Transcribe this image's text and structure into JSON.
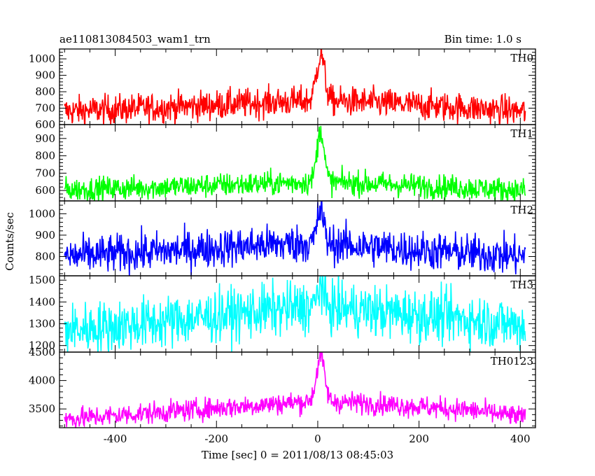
{
  "header": {
    "left_title": "ae110813084503_wam1_trn",
    "right_title": "Bin time: 1.0 s"
  },
  "chart_data": {
    "type": "line",
    "title": "ae110813084503_wam1_trn",
    "subtitle": "Bin time: 1.0 s",
    "xlabel": "Time [sec] 0 = 2011/08/13 08:45:03",
    "ylabel": "Counts/sec",
    "xlim": [
      -510,
      430
    ],
    "x_ticks": [
      -400,
      -200,
      0,
      200,
      400
    ],
    "x_range_data": [
      -500,
      410
    ],
    "panels": [
      {
        "name": "TH0",
        "color": "#ff0000",
        "ylim": [
          600,
          1060
        ],
        "y_ticks": [
          600,
          700,
          800,
          900,
          1000
        ],
        "baseline": {
          "x": [
            -500,
            -300,
            -100,
            0,
            100,
            300,
            410
          ],
          "y": [
            680,
            705,
            735,
            745,
            735,
            700,
            680
          ]
        },
        "noise": 45,
        "peak": {
          "x": 5,
          "y": 1060,
          "width": 8
        }
      },
      {
        "name": "TH1",
        "color": "#00ff00",
        "ylim": [
          540,
          980
        ],
        "y_ticks": [
          600,
          700,
          800,
          900
        ],
        "baseline": {
          "x": [
            -500,
            -300,
            -100,
            0,
            100,
            300,
            410
          ],
          "y": [
            605,
            620,
            640,
            650,
            640,
            615,
            600
          ]
        },
        "noise": 35,
        "peak": {
          "x": 5,
          "y": 980,
          "width": 7
        }
      },
      {
        "name": "TH2",
        "color": "#0000ff",
        "ylim": [
          710,
          1060
        ],
        "y_ticks": [
          800,
          900,
          1000
        ],
        "baseline": {
          "x": [
            -500,
            -300,
            -100,
            0,
            100,
            300,
            410
          ],
          "y": [
            800,
            825,
            855,
            865,
            845,
            815,
            800
          ]
        },
        "noise": 45,
        "peak": {
          "x": 5,
          "y": 1040,
          "width": 6
        }
      },
      {
        "name": "TH3",
        "color": "#00ffff",
        "ylim": [
          1170,
          1520
        ],
        "y_ticks": [
          1200,
          1300,
          1400,
          1500
        ],
        "baseline": {
          "x": [
            -500,
            -300,
            -100,
            0,
            100,
            300,
            410
          ],
          "y": [
            1270,
            1310,
            1360,
            1380,
            1360,
            1320,
            1290
          ]
        },
        "noise": 60,
        "peak": {
          "x": 5,
          "y": 1500,
          "width": 5
        }
      },
      {
        "name": "TH0123",
        "color": "#ff00ff",
        "ylim": [
          3170,
          4500
        ],
        "y_ticks": [
          3500,
          4000,
          4500
        ],
        "baseline": {
          "x": [
            -500,
            -300,
            -100,
            0,
            100,
            300,
            410
          ],
          "y": [
            3320,
            3450,
            3580,
            3640,
            3600,
            3480,
            3350
          ]
        },
        "noise": 95,
        "peak": {
          "x": 5,
          "y": 4500,
          "width": 8
        }
      }
    ]
  }
}
